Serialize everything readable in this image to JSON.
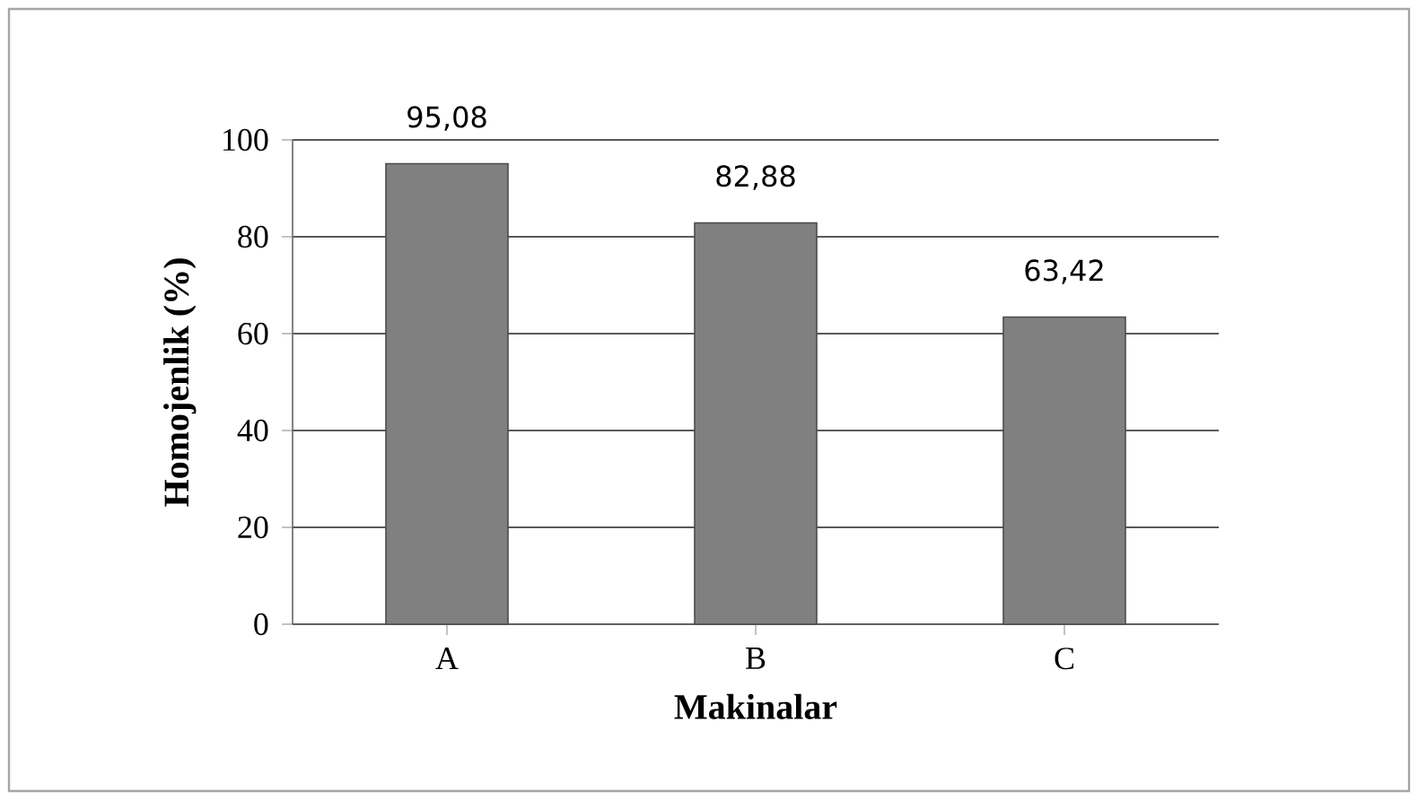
{
  "chart_data": {
    "type": "bar",
    "xlabel": "Makinalar",
    "ylabel": "Homojenlik (%)",
    "categories": [
      "A",
      "B",
      "C"
    ],
    "values": [
      95.08,
      82.88,
      63.42
    ],
    "value_labels": [
      "95,08",
      "82,88",
      "63,42"
    ],
    "color": "#808080",
    "ylim": [
      0,
      100
    ],
    "yticks": [
      0,
      20,
      40,
      60,
      80,
      100
    ],
    "grid": "y"
  }
}
